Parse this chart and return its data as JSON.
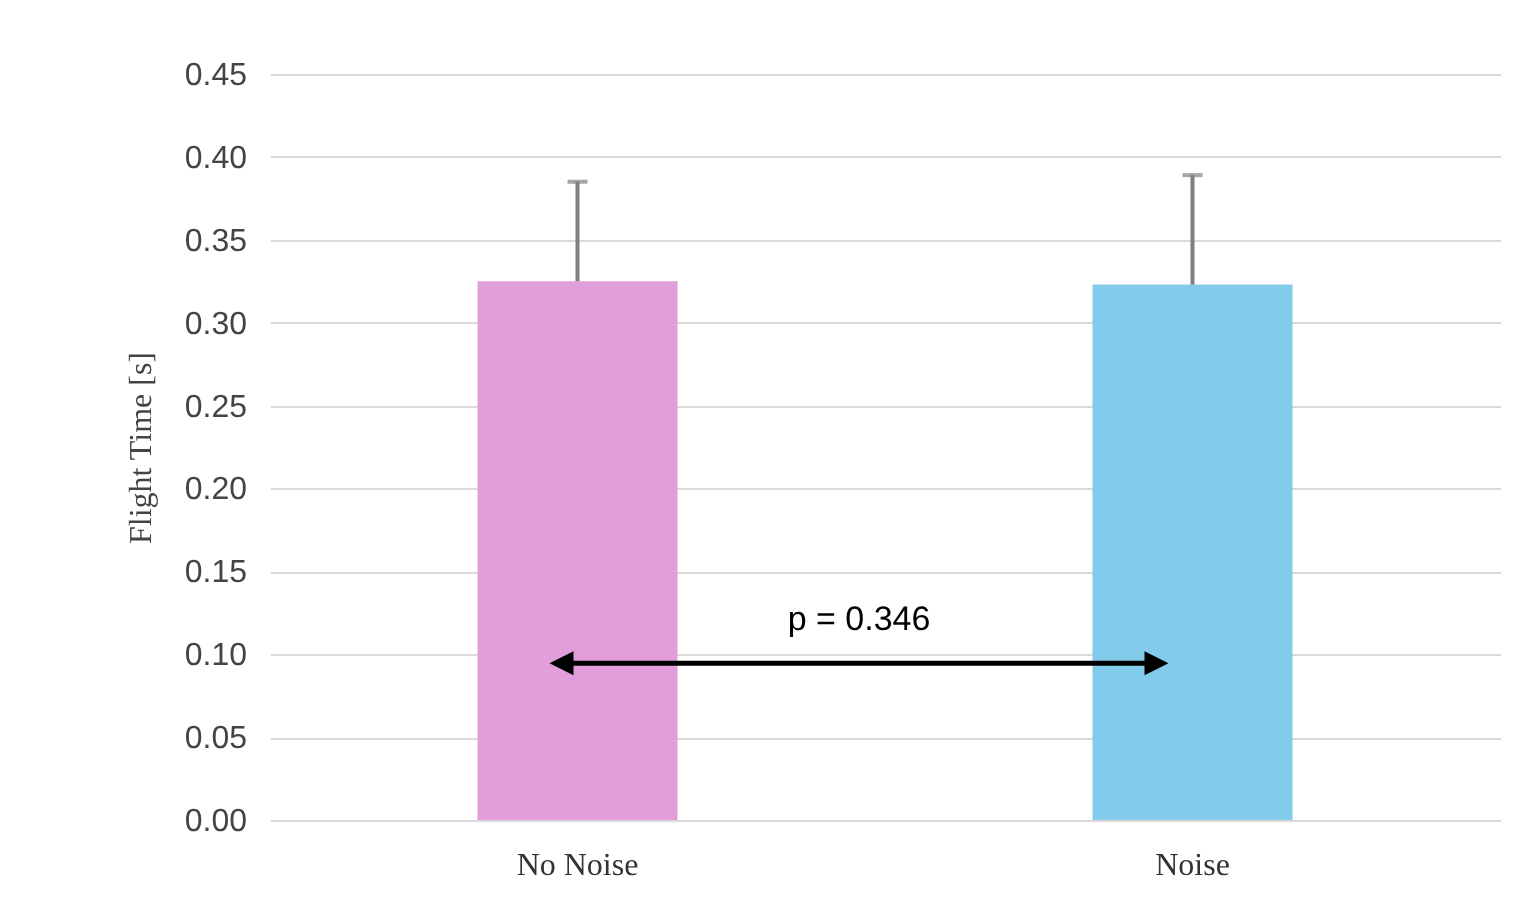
{
  "chart_data": {
    "type": "bar",
    "ylabel": "Flight Time [s]",
    "categories": [
      "No Noise",
      "Noise"
    ],
    "values": [
      0.325,
      0.323
    ],
    "colors": [
      "#e29edb",
      "#83cbeb"
    ],
    "errors": [
      [
        0.325,
        0.385
      ],
      [
        0.323,
        0.389
      ]
    ],
    "ylim": [
      0,
      0.45
    ],
    "yticks": [
      {
        "value": 0,
        "label": "0.00"
      },
      0.05,
      {
        "value": 0.1,
        "label": "0.10"
      },
      0.15,
      {
        "value": 0.2,
        "label": "0.20"
      },
      0.25,
      {
        "value": 0.3,
        "label": "0.30"
      },
      0.35,
      {
        "value": 0.4,
        "label": "0.40"
      },
      0.45
    ],
    "grid": "y",
    "annotations": [
      "p = 0.346"
    ]
  }
}
